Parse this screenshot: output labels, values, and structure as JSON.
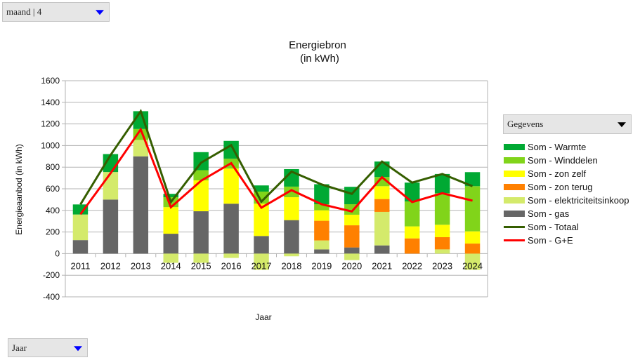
{
  "controls": {
    "page_filter": {
      "label": "maand | 4"
    },
    "data_field": {
      "label": "Gegevens"
    },
    "row_field": {
      "label": "Jaar"
    }
  },
  "colors": {
    "Warmte": "#00a933",
    "Winddelen": "#81d41a",
    "zon zelf": "#ffff00",
    "zon terug": "#ff8000",
    "elektriciteitsinkoop": "#d4ea6b",
    "gas": "#666666",
    "Totaal": "#355e00",
    "G+E": "#ff0000",
    "grid": "#b3b3b3"
  },
  "chart_data": {
    "type": "bar",
    "stacked": true,
    "title": "Energiebron",
    "subtitle": "(in kWh)",
    "xlabel": "Jaar",
    "ylabel": "Energieaanbod (in kWh)",
    "ylim": [
      -400,
      1600
    ],
    "yticks": [
      1600,
      1400,
      1200,
      1000,
      800,
      600,
      400,
      200,
      0,
      -200,
      -400
    ],
    "grid": true,
    "legend_position": "right",
    "categories": [
      "2011",
      "2012",
      "2013",
      "2014",
      "2015",
      "2016",
      "2017",
      "2018",
      "2019",
      "2020",
      "2021",
      "2022",
      "2023",
      "2024"
    ],
    "series": [
      {
        "name": "Som - gas",
        "key": "gas",
        "kind": "bar",
        "values": [
          125,
          500,
          900,
          184,
          392,
          462,
          163,
          310,
          39,
          57,
          76,
          0,
          0,
          0
        ]
      },
      {
        "name": "Som - elektriciteitsinkoop",
        "key": "elektriciteitsinkoop",
        "kind": "bar",
        "values": [
          237,
          255,
          152,
          -85,
          -85,
          -40,
          -150,
          -25,
          83,
          -60,
          310,
          0,
          39,
          -150
        ]
      },
      {
        "name": "Som - zon terug",
        "key": "zon terug",
        "kind": "bar",
        "values": [
          0,
          0,
          0,
          0,
          0,
          0,
          0,
          0,
          182,
          205,
          119,
          141,
          113,
          93
        ]
      },
      {
        "name": "Som - zon zelf",
        "key": "zon zelf",
        "kind": "bar",
        "values": [
          0,
          0,
          0,
          246,
          286,
          325,
          299,
          212,
          97,
          98,
          119,
          111,
          115,
          113
        ]
      },
      {
        "name": "Som - Winddelen",
        "key": "Winddelen",
        "kind": "bar",
        "values": [
          0,
          0,
          101,
          92,
          94,
          91,
          112,
          98,
          56,
          97,
          85,
          231,
          292,
          418
        ]
      },
      {
        "name": "Som - Warmte",
        "key": "Warmte",
        "kind": "bar",
        "values": [
          93,
          166,
          165,
          31,
          167,
          165,
          57,
          162,
          185,
          161,
          143,
          174,
          178,
          130
        ]
      },
      {
        "name": "Som - Totaal",
        "key": "Totaal",
        "kind": "line",
        "values": [
          455,
          912,
          1318,
          477,
          841,
          1004,
          481,
          759,
          640,
          553,
          852,
          657,
          737,
          624
        ]
      },
      {
        "name": "Som - G+E",
        "key": "G+E",
        "kind": "line",
        "values": [
          364,
          744,
          1149,
          429,
          674,
          837,
          425,
          587,
          457,
          390,
          707,
          477,
          559,
          490
        ]
      }
    ],
    "legend_order": [
      "Som - Warmte",
      "Som - Winddelen",
      "Som - zon zelf",
      "Som - zon terug",
      "Som - elektriciteitsinkoop",
      "Som - gas",
      "Som - Totaal",
      "Som - G+E"
    ]
  }
}
